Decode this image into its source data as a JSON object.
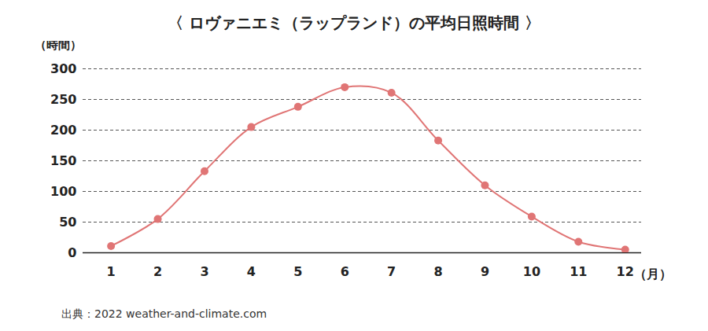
{
  "chart_data": {
    "type": "line",
    "title": "〈 ロヴァニエミ（ラップランド）の平均日照時間 〉",
    "y_label": "（時間）",
    "x_label": "（月）",
    "source": "出典：2022 weather-and-climate.com",
    "x": [
      1,
      2,
      3,
      4,
      5,
      6,
      7,
      8,
      9,
      10,
      11,
      12
    ],
    "values": [
      11,
      55,
      133,
      205,
      238,
      270,
      261,
      183,
      110,
      59,
      18,
      5
    ],
    "color": "#e07575",
    "marker": "circle",
    "line_style": "solid",
    "xlim": [
      0.4,
      12.35
    ],
    "xticks": [
      1,
      2,
      3,
      4,
      5,
      6,
      7,
      8,
      9,
      10,
      11,
      12
    ],
    "ylim": [
      0,
      300
    ],
    "yticks": [
      0,
      50,
      100,
      150,
      200,
      250,
      300
    ],
    "grid": true
  }
}
